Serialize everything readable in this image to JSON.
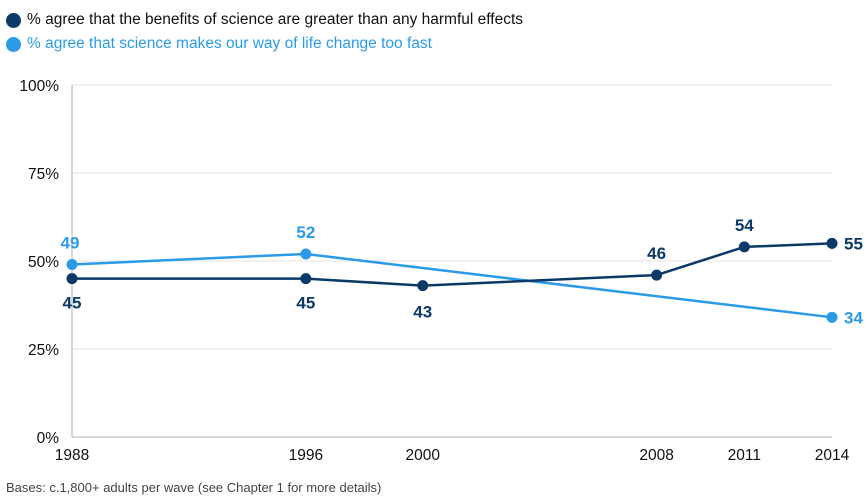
{
  "chart_data": {
    "type": "line",
    "x": [
      "1988",
      "1996",
      "2000",
      "2008",
      "2011",
      "2014"
    ],
    "x_numeric": [
      1988,
      1996,
      2000,
      2008,
      2011,
      2014
    ],
    "series": [
      {
        "name": "% agree that the benefits of science are greater than any harmful effects",
        "color": "#0b3a68",
        "x": [
          1988,
          1996,
          2000,
          2008,
          2011,
          2014
        ],
        "values": [
          45,
          45,
          43,
          46,
          54,
          55
        ],
        "labels": [
          "45",
          "45",
          "43",
          "46",
          "54",
          "55"
        ]
      },
      {
        "name": "% agree that science makes our way of life change too fast",
        "color": "#2b9be8",
        "x": [
          1988,
          1996,
          2014
        ],
        "values": [
          49,
          52,
          34
        ],
        "labels": [
          "49",
          "52",
          "34"
        ]
      }
    ],
    "yticks": [
      "0%",
      "25%",
      "50%",
      "75%",
      "100%"
    ],
    "ytick_values": [
      0,
      25,
      50,
      75,
      100
    ],
    "ylim": [
      0,
      100
    ],
    "xlim": [
      1988,
      2014
    ],
    "grid": "horizontal",
    "legend": "top-left"
  },
  "footnote": "Bases: c.1,800+ adults per wave (see Chapter 1 for more details)"
}
